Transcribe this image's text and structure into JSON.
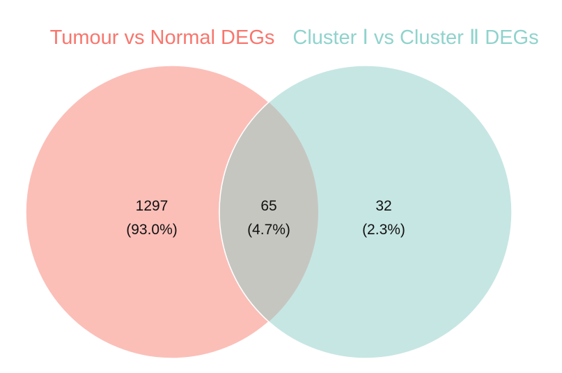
{
  "venn": {
    "sets": [
      {
        "label": "Tumour vs Normal DEGs",
        "color": "#f8766d",
        "fill": "#fbbfb8"
      },
      {
        "label": "Cluster Ⅰ vs Cluster Ⅱ DEGs",
        "color": "#8fd3cc",
        "fill": "#c6e6e3"
      }
    ],
    "intersection_fill": "#c6c6c1",
    "regions": {
      "left_only": {
        "count": "1297",
        "percent": "(93.0%)"
      },
      "both": {
        "count": "65",
        "percent": "(4.7%)"
      },
      "right_only": {
        "count": "32",
        "percent": "(2.3%)"
      }
    }
  }
}
